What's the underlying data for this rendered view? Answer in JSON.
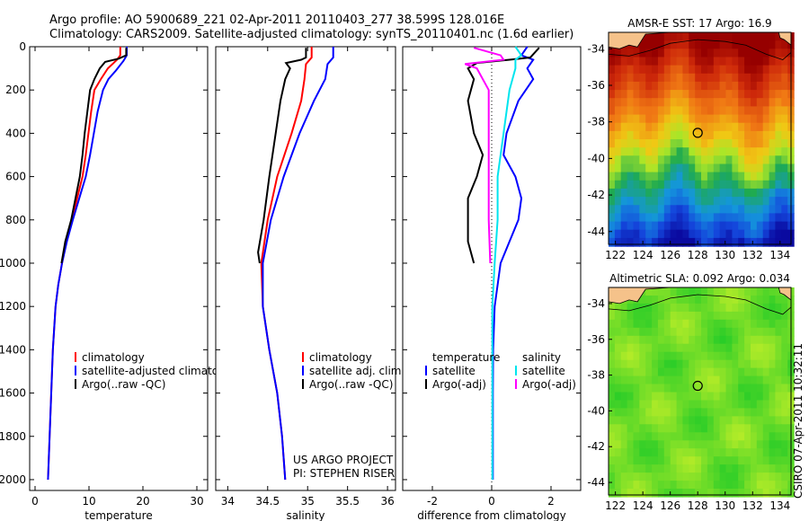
{
  "header": {
    "line1": "Argo profile: AO 5900689_221 02-Apr-2011 20110403_277 38.599S 128.016E",
    "line2": "Climatology: CARS2009. Satellite-adjusted climatology: synTS_20110401.nc (1.6d earlier)"
  },
  "side_label": "CSIRO 07-Apr-2011 10:32:11",
  "colors": {
    "climatology": "#ff0000",
    "satellite": "#0000ff",
    "argo": "#000000",
    "satellite_salinity": "#00e5ee",
    "argo_salinity": "#ff00ff",
    "land": "#f5c28a"
  },
  "chart_data": [
    {
      "id": "temperature",
      "type": "line",
      "xlabel": "temperature",
      "xlim": [
        -1,
        32
      ],
      "ylim": [
        0,
        2050
      ],
      "y_inverted": true,
      "xticks": [
        0,
        10,
        20,
        30
      ],
      "yticks": [
        0,
        200,
        400,
        600,
        800,
        1000,
        1200,
        1400,
        1600,
        1800,
        2000
      ],
      "legend": [
        "climatology",
        "satellite-adjusted climatology",
        "Argo(..raw -QC)"
      ],
      "series": [
        {
          "name": "climatology",
          "color": "#ff0000",
          "points": [
            [
              15.8,
              0
            ],
            [
              15.8,
              40
            ],
            [
              15.2,
              60
            ],
            [
              13.5,
              100
            ],
            [
              12.2,
              150
            ],
            [
              11.0,
              200
            ],
            [
              10.4,
              300
            ],
            [
              9.9,
              400
            ],
            [
              9.4,
              500
            ],
            [
              8.8,
              600
            ],
            [
              7.8,
              700
            ],
            [
              6.9,
              800
            ],
            [
              5.8,
              900
            ],
            [
              5.0,
              1000
            ],
            [
              4.3,
              1100
            ],
            [
              3.8,
              1200
            ],
            [
              3.3,
              1400
            ],
            [
              3.0,
              1600
            ],
            [
              2.7,
              1800
            ],
            [
              2.4,
              2000
            ]
          ]
        },
        {
          "name": "satellite-adjusted climatology",
          "color": "#0000ff",
          "points": [
            [
              17.0,
              0
            ],
            [
              17.0,
              40
            ],
            [
              16.4,
              65
            ],
            [
              15.0,
              110
            ],
            [
              13.6,
              150
            ],
            [
              12.6,
              200
            ],
            [
              11.6,
              300
            ],
            [
              10.9,
              400
            ],
            [
              10.2,
              500
            ],
            [
              9.4,
              600
            ],
            [
              8.2,
              700
            ],
            [
              7.0,
              800
            ],
            [
              5.9,
              900
            ],
            [
              5.0,
              1000
            ],
            [
              4.3,
              1100
            ],
            [
              3.8,
              1200
            ],
            [
              3.3,
              1400
            ],
            [
              3.0,
              1600
            ],
            [
              2.7,
              1800
            ],
            [
              2.4,
              2000
            ]
          ]
        },
        {
          "name": "Argo(..raw -QC)",
          "color": "#000000",
          "points": [
            [
              16.9,
              5
            ],
            [
              16.9,
              40
            ],
            [
              15.5,
              55
            ],
            [
              13.0,
              70
            ],
            [
              12.0,
              100
            ],
            [
              11.0,
              150
            ],
            [
              10.2,
              200
            ],
            [
              9.7,
              300
            ],
            [
              9.2,
              400
            ],
            [
              8.8,
              500
            ],
            [
              8.3,
              600
            ],
            [
              7.5,
              700
            ],
            [
              6.7,
              800
            ],
            [
              5.6,
              900
            ],
            [
              4.9,
              1000
            ]
          ]
        }
      ]
    },
    {
      "id": "salinity",
      "type": "line",
      "xlabel": "salinity",
      "xlim": [
        33.85,
        36.1
      ],
      "ylim": [
        0,
        2050
      ],
      "y_inverted": true,
      "xticks": [
        34,
        34.5,
        35,
        35.5,
        36
      ],
      "legend": [
        "climatology",
        "satellite adj. clim.",
        "Argo(..raw -QC)"
      ],
      "annotation": [
        "US ARGO PROJECT",
        "PI: STEPHEN RISER"
      ],
      "series": [
        {
          "name": "climatology",
          "color": "#ff0000",
          "points": [
            [
              35.05,
              0
            ],
            [
              35.05,
              50
            ],
            [
              34.98,
              80
            ],
            [
              34.96,
              150
            ],
            [
              34.92,
              250
            ],
            [
              34.8,
              400
            ],
            [
              34.62,
              600
            ],
            [
              34.5,
              800
            ],
            [
              34.42,
              1000
            ],
            [
              34.44,
              1200
            ],
            [
              34.52,
              1400
            ],
            [
              34.62,
              1600
            ],
            [
              34.68,
              1800
            ],
            [
              34.72,
              2000
            ]
          ]
        },
        {
          "name": "satellite adj. clim.",
          "color": "#0000ff",
          "points": [
            [
              35.32,
              0
            ],
            [
              35.32,
              50
            ],
            [
              35.25,
              80
            ],
            [
              35.22,
              150
            ],
            [
              35.08,
              250
            ],
            [
              34.9,
              400
            ],
            [
              34.7,
              600
            ],
            [
              34.54,
              800
            ],
            [
              34.44,
              1000
            ],
            [
              34.44,
              1200
            ],
            [
              34.52,
              1400
            ],
            [
              34.62,
              1600
            ],
            [
              34.68,
              1800
            ],
            [
              34.72,
              2000
            ]
          ]
        },
        {
          "name": "Argo(..raw -QC)",
          "color": "#000000",
          "points": [
            [
              34.98,
              5
            ],
            [
              34.98,
              50
            ],
            [
              34.92,
              60
            ],
            [
              34.73,
              75
            ],
            [
              34.78,
              100
            ],
            [
              34.72,
              150
            ],
            [
              34.66,
              250
            ],
            [
              34.6,
              400
            ],
            [
              34.52,
              600
            ],
            [
              34.45,
              800
            ],
            [
              34.38,
              950
            ],
            [
              34.4,
              1000
            ]
          ]
        }
      ]
    },
    {
      "id": "difference",
      "type": "line",
      "xlabel": "difference from climatology",
      "xlim": [
        -3,
        3
      ],
      "ylim": [
        0,
        2050
      ],
      "y_inverted": true,
      "xticks": [
        -2,
        0,
        2
      ],
      "legend_left": [
        "temperature",
        "satellite",
        "Argo(-adj)"
      ],
      "legend_right": [
        "salinity",
        "satellite",
        "Argo(-adj)"
      ],
      "series": [
        {
          "name": "satellite",
          "quantity": "temperature",
          "color": "#0000ff",
          "points": [
            [
              1.2,
              0
            ],
            [
              1.0,
              40
            ],
            [
              1.4,
              60
            ],
            [
              1.2,
              100
            ],
            [
              1.4,
              150
            ],
            [
              0.9,
              250
            ],
            [
              0.5,
              400
            ],
            [
              0.4,
              500
            ],
            [
              0.8,
              600
            ],
            [
              1.0,
              700
            ],
            [
              0.9,
              800
            ],
            [
              0.6,
              900
            ],
            [
              0.3,
              1000
            ],
            [
              0.1,
              1200
            ],
            [
              0.05,
              1400
            ],
            [
              0.04,
              1600
            ],
            [
              0.04,
              1800
            ],
            [
              0.04,
              2000
            ]
          ]
        },
        {
          "name": "Argo(-adj)",
          "quantity": "temperature",
          "color": "#000000",
          "points": [
            [
              1.6,
              5
            ],
            [
              1.3,
              50
            ],
            [
              0.6,
              60
            ],
            [
              -0.5,
              75
            ],
            [
              -0.8,
              100
            ],
            [
              -0.6,
              150
            ],
            [
              -0.8,
              250
            ],
            [
              -0.6,
              400
            ],
            [
              -0.3,
              500
            ],
            [
              -0.5,
              600
            ],
            [
              -0.8,
              700
            ],
            [
              -0.8,
              800
            ],
            [
              -0.8,
              900
            ],
            [
              -0.6,
              1000
            ]
          ]
        },
        {
          "name": "satellite",
          "quantity": "salinity",
          "color": "#00e5ee",
          "points": [
            [
              0.8,
              0
            ],
            [
              1.0,
              40
            ],
            [
              0.8,
              60
            ],
            [
              0.8,
              100
            ],
            [
              0.6,
              200
            ],
            [
              0.4,
              400
            ],
            [
              0.2,
              600
            ],
            [
              0.2,
              800
            ],
            [
              0.1,
              1000
            ],
            [
              0.02,
              1200
            ],
            [
              0.02,
              1400
            ],
            [
              0.02,
              1600
            ],
            [
              0.02,
              1800
            ],
            [
              0.02,
              2000
            ]
          ]
        },
        {
          "name": "Argo(-adj)",
          "quantity": "salinity",
          "color": "#ff00ff",
          "points": [
            [
              -0.6,
              5
            ],
            [
              0.3,
              40
            ],
            [
              0.4,
              60
            ],
            [
              -0.9,
              80
            ],
            [
              -0.5,
              100
            ],
            [
              -0.1,
              200
            ],
            [
              -0.1,
              300
            ],
            [
              -0.1,
              400
            ],
            [
              -0.1,
              600
            ],
            [
              -0.1,
              800
            ],
            [
              -0.05,
              1000
            ]
          ]
        }
      ]
    },
    {
      "id": "sst-map",
      "type": "heatmap",
      "title": "AMSR-E SST: 17 Argo: 16.9",
      "xlim": [
        121.5,
        134.8
      ],
      "ylim": [
        -44.7,
        -33.1
      ],
      "xticks": [
        122,
        124,
        126,
        128,
        130,
        132,
        134
      ],
      "yticks": [
        -34,
        -36,
        -38,
        -40,
        -42,
        -44
      ],
      "marker": {
        "lon": 128.0,
        "lat": -38.6
      }
    },
    {
      "id": "sla-map",
      "type": "heatmap",
      "title": "Altimetric SLA: 0.092 Argo: 0.034",
      "xlim": [
        121.5,
        134.8
      ],
      "ylim": [
        -44.7,
        -33.1
      ],
      "xticks": [
        122,
        124,
        126,
        128,
        130,
        132,
        134
      ],
      "yticks": [
        -34,
        -36,
        -38,
        -40,
        -42,
        -44
      ],
      "marker": {
        "lon": 128.0,
        "lat": -38.6
      }
    }
  ]
}
